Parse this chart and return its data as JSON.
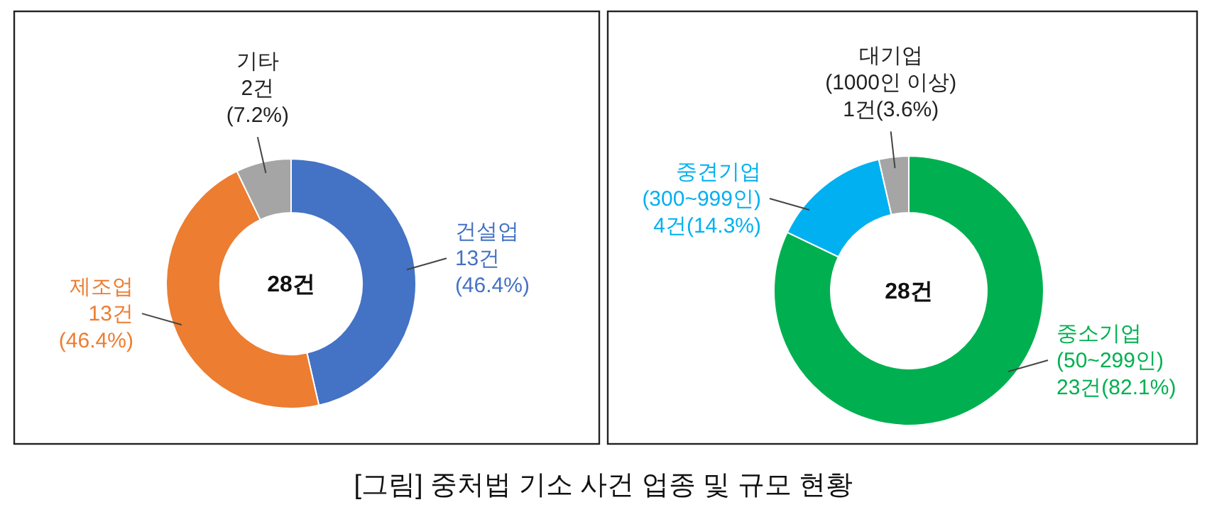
{
  "chart_data": [
    {
      "type": "donut",
      "title": "[그림] 중처법 기소 사건 업종 및 규모 현황",
      "categories": [
        "건설업",
        "제조업",
        "기타"
      ],
      "values": [
        13,
        13,
        2
      ],
      "value_labels": [
        "13건\n(46.4%)",
        "13건\n(46.4%)",
        "2건\n(7.2%)"
      ],
      "colors": [
        "#4472c4",
        "#ed7d31",
        "#a5a5a5"
      ],
      "annotations": [
        "28건"
      ]
    },
    {
      "type": "donut",
      "categories": [
        "중소기업\n(50~299인)",
        "중견기업\n(300~999인)",
        "대기업\n(1000인 이상)"
      ],
      "values": [
        23,
        4,
        1
      ],
      "value_labels": [
        "23건(82.1%)",
        "4건(14.3%)",
        "1건(3.6%)"
      ],
      "colors": [
        "#00b050",
        "#00b0f0",
        "#a5a5a5"
      ],
      "annotations": [
        "28건"
      ]
    }
  ]
}
